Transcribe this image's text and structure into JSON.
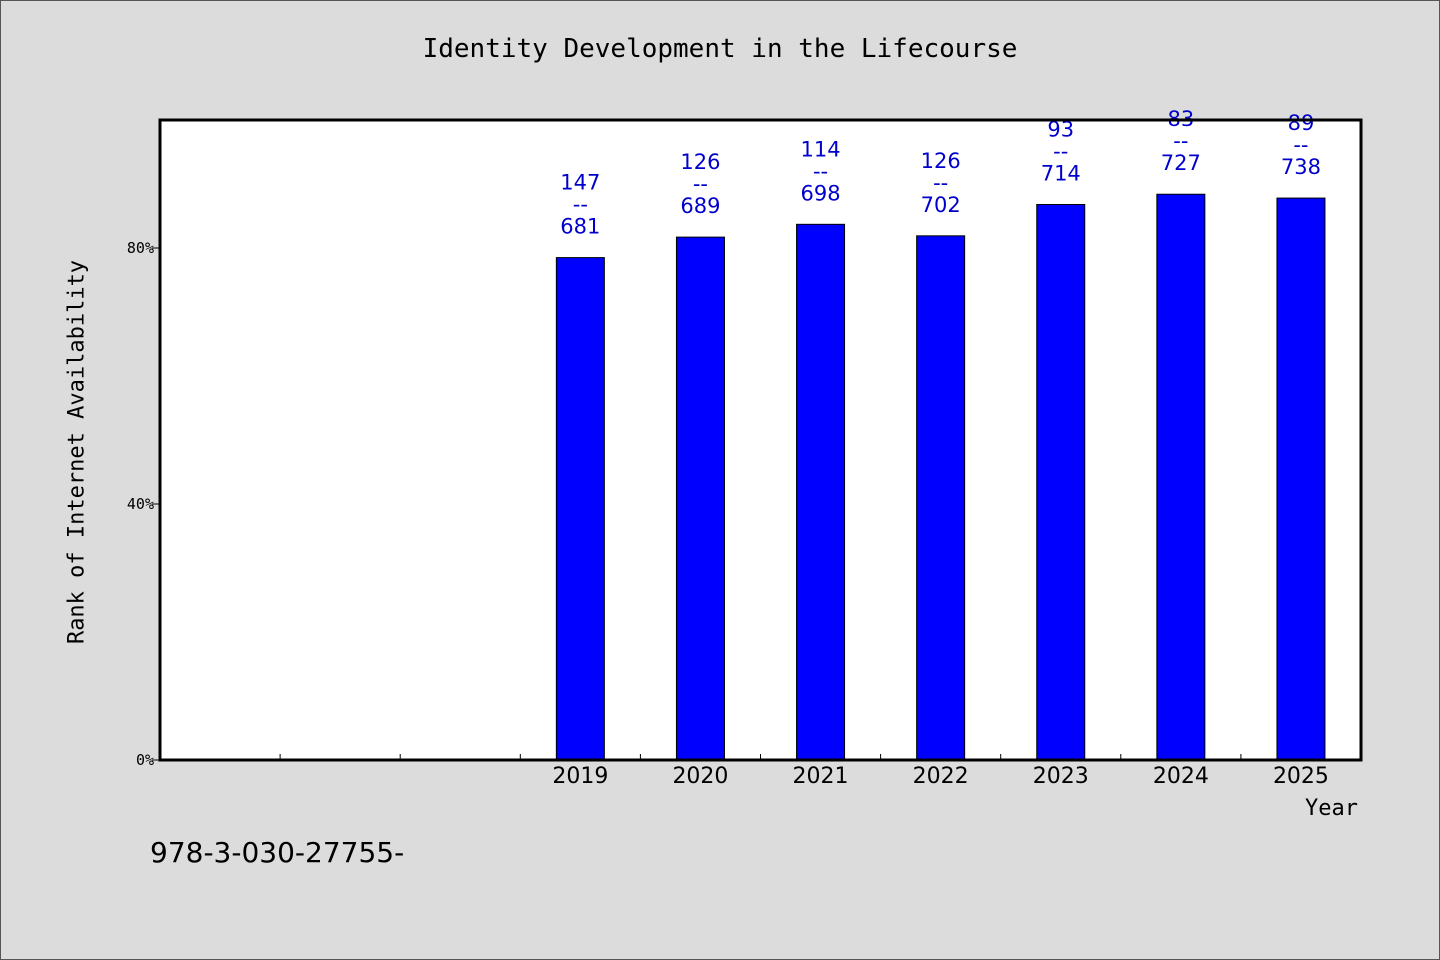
{
  "chart_data": {
    "type": "bar",
    "title": "Identity Development in the Lifecourse",
    "xlabel": "Year",
    "ylabel": "Rank of Internet Availability",
    "categories": [
      "",
      "",
      "",
      "2019",
      "2020",
      "2021",
      "2022",
      "2023",
      "2024",
      "2025"
    ],
    "values": [
      null,
      null,
      null,
      78.5,
      81.7,
      83.7,
      81.9,
      86.8,
      88.4,
      87.8
    ],
    "bar_labels": [
      null,
      null,
      null,
      [
        "147",
        "--",
        "681"
      ],
      [
        "126",
        "--",
        "689"
      ],
      [
        "114",
        "--",
        "698"
      ],
      [
        "126",
        "--",
        "702"
      ],
      [
        "93",
        "--",
        "714"
      ],
      [
        "83",
        "--",
        "727"
      ],
      [
        "89",
        "--",
        "738"
      ]
    ],
    "ylim": [
      0,
      100
    ],
    "yticks": [
      0,
      40,
      80
    ],
    "ytick_labels": [
      "0%",
      "40%",
      "80%"
    ],
    "grid": false,
    "colors": {
      "bar": "#0000ff",
      "label": "#0000cc",
      "background": "#dcdcdc",
      "plot_area": "#ffffff"
    }
  },
  "footer_text": "978-3-030-27755-"
}
